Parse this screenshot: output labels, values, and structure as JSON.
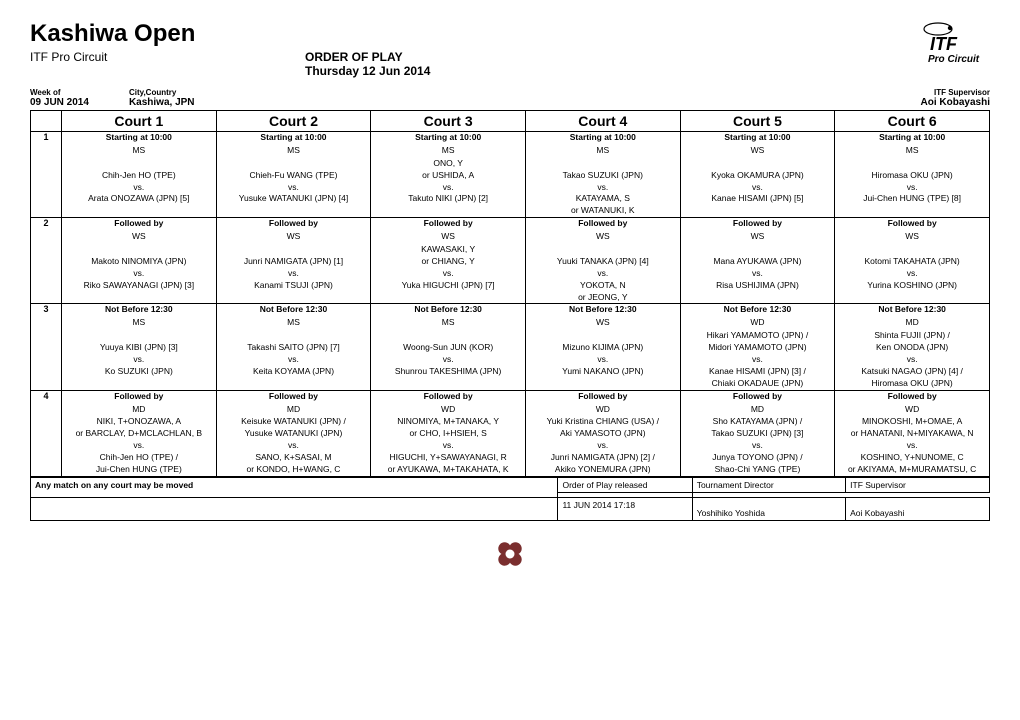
{
  "header": {
    "title": "Kashiwa Open",
    "circuit": "ITF Pro Circuit",
    "order_label": "ORDER OF PLAY",
    "date_label": "Thursday 12 Jun 2014",
    "logo_top": "ITF",
    "logo_sub": "Pro Circuit"
  },
  "meta": {
    "week_label": "Week of",
    "week_value": "09 JUN 2014",
    "city_label": "City,Country",
    "city_value": "Kashiwa, JPN",
    "sup_label": "ITF Supervisor",
    "sup_value": "Aoi Kobayashi"
  },
  "courts": [
    "Court 1",
    "Court 2",
    "Court 3",
    "Court 4",
    "Court 5",
    "Court 6"
  ],
  "slots": [
    {
      "num": "1",
      "cells": [
        {
          "timing": "Starting  at  10:00",
          "type": "MS",
          "lines": [
            "",
            "Chih-Jen  HO  (TPE)",
            "vs.",
            "Arata  ONOZAWA  (JPN)  [5]"
          ]
        },
        {
          "timing": "Starting  at  10:00",
          "type": "MS",
          "lines": [
            "",
            "Chieh-Fu  WANG  (TPE)",
            "vs.",
            "Yusuke  WATANUKI  (JPN)  [4]"
          ]
        },
        {
          "timing": "Starting  at  10:00",
          "type": "MS",
          "lines": [
            "ONO,  Y",
            "or  USHIDA,  A",
            "vs.",
            "Takuto NIKI (JPN) [2]"
          ]
        },
        {
          "timing": "Starting  at  10:00",
          "type": "MS",
          "lines": [
            "",
            "Takao  SUZUKI  (JPN)",
            "vs.",
            "KATAYAMA,   S",
            "or  WATANUKI,  K"
          ]
        },
        {
          "timing": "Starting  at  10:00",
          "type": "WS",
          "lines": [
            "",
            "Kyoka  OKAMURA  (JPN)",
            "vs.",
            "Kanae  HISAMI  (JPN)  [5]"
          ]
        },
        {
          "timing": "Starting  at  10:00",
          "type": "MS",
          "lines": [
            "",
            "Hiromasa  OKU  (JPN)",
            "vs.",
            "Jui-Chen  HUNG  (TPE)  [8]"
          ]
        }
      ]
    },
    {
      "num": "2",
      "cells": [
        {
          "timing": "Followed  by",
          "type": "WS",
          "lines": [
            "",
            "Makoto  NINOMIYA  (JPN)",
            "vs.",
            "Riko  SAWAYANAGI  (JPN)  [3]"
          ]
        },
        {
          "timing": "Followed  by",
          "type": "WS",
          "lines": [
            "",
            "Junri  NAMIGATA  (JPN)  [1]",
            "vs.",
            "Kanami  TSUJI  (JPN)"
          ]
        },
        {
          "timing": "Followed  by",
          "type": "WS",
          "lines": [
            "KAWASAKI,  Y",
            "or  CHIANG,  Y",
            "vs.",
            "Yuka  HIGUCHI  (JPN)  [7]"
          ]
        },
        {
          "timing": "Followed  by",
          "type": "WS",
          "lines": [
            "",
            "Yuuki  TANAKA  (JPN)  [4]",
            "vs.",
            "YOKOTA,  N",
            "or  JEONG, Y"
          ]
        },
        {
          "timing": "Followed  by",
          "type": "WS",
          "lines": [
            "",
            "Mana  AYUKAWA  (JPN)",
            "vs.",
            "Risa  USHIJIMA  (JPN)"
          ]
        },
        {
          "timing": "Followed  by",
          "type": "WS",
          "lines": [
            "",
            "Kotomi   TAKAHATA   (JPN)",
            "vs.",
            "Yurina  KOSHINO  (JPN)"
          ]
        }
      ]
    },
    {
      "num": "3",
      "cells": [
        {
          "timing": "Not  Before  12:30",
          "type": "MS",
          "lines": [
            "",
            "Yuuya KIBI (JPN) [3]",
            "vs.",
            "Ko  SUZUKI  (JPN)"
          ]
        },
        {
          "timing": "Not  Before  12:30",
          "type": "MS",
          "lines": [
            "",
            "Takashi  SAITO  (JPN)  [7]",
            "vs.",
            "Keita  KOYAMA  (JPN)"
          ]
        },
        {
          "timing": "Not  Before  12:30",
          "type": "MS",
          "lines": [
            "",
            "Woong-Sun  JUN  (KOR)",
            "vs.",
            "Shunrou  TAKESHIMA  (JPN)"
          ]
        },
        {
          "timing": "Not  Before  12:30",
          "type": "WS",
          "lines": [
            "",
            "Mizuno  KIJIMA  (JPN)",
            "vs.",
            "Yumi  NAKANO  (JPN)"
          ]
        },
        {
          "timing": "Not  Before  12:30",
          "type": "WD",
          "lines": [
            "Hikari  YAMAMOTO  (JPN)  /",
            "Midori  YAMAMOTO  (JPN)",
            "vs.",
            "Kanae HISAMI (JPN) [3] /",
            "Chiaki  OKADAUE  (JPN)"
          ]
        },
        {
          "timing": "Not  Before  12:30",
          "type": "MD",
          "lines": [
            "Shinta FUJII (JPN) /",
            "Ken  ONODA  (JPN)",
            "vs.",
            "Katsuki NAGAO (JPN) [4] /",
            "Hiromasa  OKU  (JPN)"
          ]
        }
      ]
    },
    {
      "num": "4",
      "cells": [
        {
          "timing": "Followed  by",
          "type": "MD",
          "lines": [
            "NIKI,  T+ONOZAWA,  A",
            "or  BARCLAY,  D+MCLACHLAN,  B",
            "vs.",
            "Chih-Jen HO (TPE) /",
            "Jui-Chen  HUNG  (TPE)"
          ]
        },
        {
          "timing": "Followed  by",
          "type": "MD",
          "lines": [
            "Keisuke  WATANUKI  (JPN)  /",
            "Yusuke  WATANUKI  (JPN)",
            "vs.",
            "SANO,  K+SASAI,  M",
            "or  KONDO,  H+WANG,  C"
          ]
        },
        {
          "timing": "Followed  by",
          "type": "WD",
          "lines": [
            "NINOMIYA,  M+TANAKA,  Y",
            "or  CHO,  I+HSIEH,  S",
            "vs.",
            "HIGUCHI,   Y+SAWAYANAGI,   R",
            "or   AYUKAWA,   M+TAKAHATA,   K"
          ]
        },
        {
          "timing": "Followed  by",
          "type": "WD",
          "lines": [
            "Yuki Kristina  CHIANG  (USA)  /",
            "Aki  YAMASOTO  (JPN)",
            "vs.",
            "Junri  NAMIGATA  (JPN)  [2]  /",
            "Akiko  YONEMURA  (JPN)"
          ]
        },
        {
          "timing": "Followed  by",
          "type": "MD",
          "lines": [
            "Sho  KATAYAMA  (JPN)  /",
            "Takao  SUZUKI  (JPN)  [3]",
            "vs.",
            "Junya  TOYONO  (JPN)  /",
            "Shao-Chi  YANG  (TPE)"
          ]
        },
        {
          "timing": "Followed  by",
          "type": "WD",
          "lines": [
            "MINOKOSHI,   M+OMAE,   A",
            "or   HANATANI,   N+MIYAKAWA,   N",
            "vs.",
            "KOSHINO,   Y+NUNOME,   C",
            "or   AKIYAMA,   M+MURAMATSU,   C"
          ]
        }
      ]
    }
  ],
  "footer": {
    "note": "Any match on any court may be moved",
    "released_label": "Order of Play released",
    "released_value": "11 JUN 2014 17:18",
    "dir_label": "Tournament Director",
    "dir_value": "Yoshihiko Yoshida",
    "sup_label": "ITF Supervisor",
    "sup_value": "Aoi Kobayashi"
  }
}
